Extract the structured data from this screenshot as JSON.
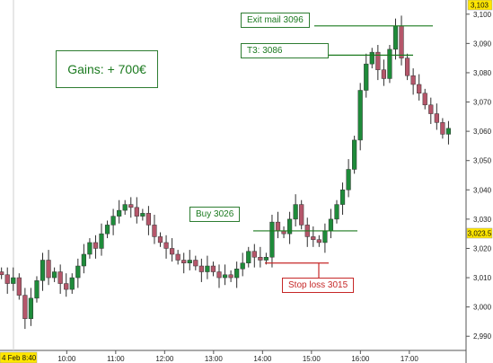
{
  "chart_data": {
    "type": "candlestick",
    "ylim": [
      2987,
      3103
    ],
    "y_ticks": [
      "3,100",
      "3,090",
      "3,080",
      "3,070",
      "3,060",
      "3,050",
      "3,040",
      "3,030",
      "3,020",
      "3,010",
      "3,000",
      "2,990"
    ],
    "y_tick_values": [
      3100,
      3090,
      3080,
      3070,
      3060,
      3050,
      3040,
      3030,
      3020,
      3010,
      3000,
      2990
    ],
    "x_ticks": [
      "10:00",
      "11:00",
      "12:00",
      "13:00",
      "14:00",
      "15:00",
      "16:00",
      "17:00"
    ],
    "x_tick_values": [
      10,
      11,
      12,
      13,
      14,
      15,
      16,
      17
    ],
    "x_start_label": "4 Feb 8:40",
    "x_start_value": 8.6667,
    "x_end_value": 17.8,
    "price_top_label": "3,103",
    "price_top_value": 3103,
    "last_price_label": "3,023.5",
    "last_price_value": 3023.5,
    "grid": false,
    "up_color": "#1e8b3a",
    "down_color": "#b5566a",
    "annotation_color": "#1b7a1f",
    "stop_color": "#c62828",
    "close": [
      3011,
      3008,
      3010,
      3004,
      2996,
      3003,
      3009,
      3016,
      3010,
      3012,
      3008,
      3006,
      3010,
      3014,
      3018,
      3022,
      3020,
      3025,
      3028,
      3031,
      3033,
      3035,
      3034,
      3031,
      3032,
      3028,
      3024,
      3022,
      3020,
      3018,
      3016,
      3015,
      3016,
      3014,
      3012,
      3014,
      3012,
      3010,
      3011,
      3010,
      3013,
      3015,
      3019,
      3017,
      3016,
      3017,
      3029,
      3026,
      3025,
      3030,
      3035,
      3028,
      3024,
      3023,
      3022,
      3026,
      3030,
      3035,
      3040,
      3047,
      3057,
      3074,
      3083,
      3087,
      3081,
      3078,
      3088,
      3096,
      3085,
      3079,
      3076,
      3073,
      3069,
      3066,
      3063,
      3059,
      3061
    ]
  },
  "annotations": {
    "gains": "Gains: + 700€",
    "exit": "Exit mail 3096",
    "t3": "T3: 3086",
    "buy": "Buy 3026",
    "stop_loss": "Stop loss 3015"
  },
  "levels": {
    "exit": 3096,
    "t3": 3086,
    "buy": 3026,
    "stop_loss": 3015
  }
}
